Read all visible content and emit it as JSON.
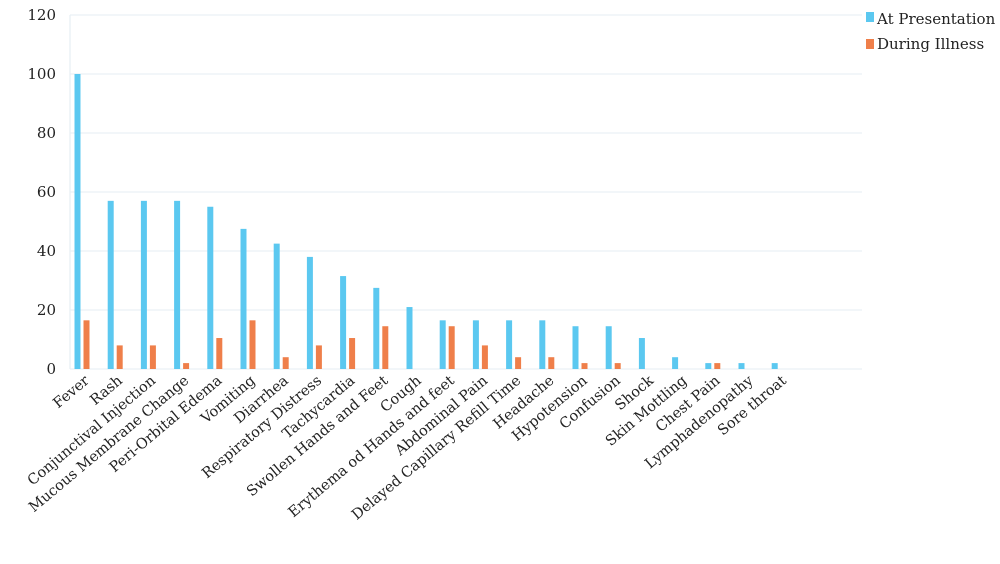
{
  "chart_data": {
    "type": "bar",
    "title": "",
    "xlabel": "",
    "ylabel": "",
    "ylim": [
      0,
      120
    ],
    "yticks": [
      0,
      20,
      40,
      60,
      80,
      100,
      120
    ],
    "grid": true,
    "legend_position": "top-right",
    "categories": [
      "Fever",
      "Rash",
      "Conjunctival Injection",
      "Mucous Membrane Change",
      "Peri-Orbital Edema",
      "Vomiting",
      "Diarrhea",
      "Respiratory Distress",
      "Tachycardia",
      "Swollen Hands and Feet",
      "Cough",
      "Erythema od Hands and feet",
      "Abdominal Pain",
      "Delayed Capillary Refill Time",
      "Headache",
      "Hypotension",
      "Confusion",
      "Shock",
      "Skin Mottling",
      "Chest Pain",
      "Lymphadenopathy",
      "Sore throat"
    ],
    "series": [
      {
        "name": "At Presentation",
        "color": "#5bc8f0",
        "values": [
          100,
          57,
          57,
          57,
          55,
          47.5,
          42.5,
          38,
          31.5,
          27.5,
          21,
          16.5,
          16.5,
          16.5,
          16.5,
          14.5,
          14.5,
          10.5,
          4,
          2,
          2,
          2
        ]
      },
      {
        "name": "During Illness",
        "color": "#ef7f4a",
        "values": [
          16.5,
          8,
          8,
          2,
          10.5,
          16.5,
          4,
          8,
          10.5,
          14.5,
          0,
          14.5,
          8,
          4,
          4,
          2,
          2,
          0,
          0,
          2,
          0,
          0
        ]
      }
    ]
  }
}
